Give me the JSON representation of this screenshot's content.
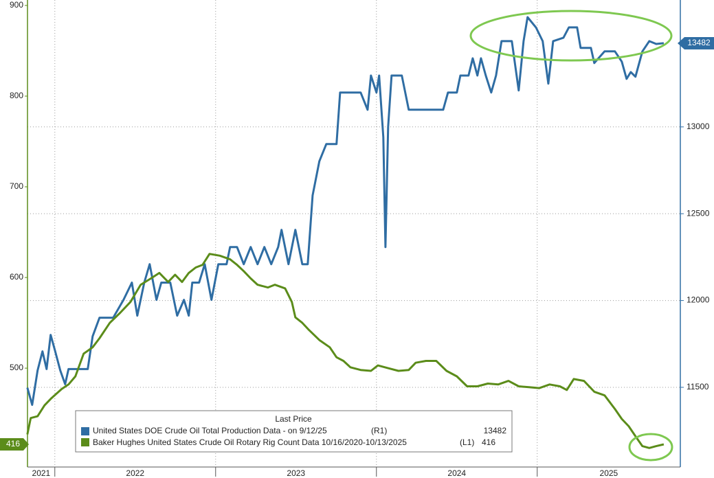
{
  "chart_data": {
    "type": "line",
    "legend_title": "Last Price",
    "xlim": [
      2021.83,
      2025.89
    ],
    "xticks": [
      {
        "value": 2021,
        "label": "2021"
      },
      {
        "value": 2022,
        "label": "2022"
      },
      {
        "value": 2023,
        "label": "2023"
      },
      {
        "value": 2024,
        "label": "2024"
      },
      {
        "value": 2025,
        "label": "2025"
      }
    ],
    "ylim": [
      391,
      906
    ],
    "yticks": [
      500,
      600,
      700,
      800,
      900
    ],
    "y2lim": [
      11041,
      13731
    ],
    "y2ticks": [
      11500,
      12000,
      12500,
      13000
    ],
    "grid": true,
    "series": [
      {
        "name": "United States DOE Crude Oil Total Production Data -  on 9/12/25",
        "axis_label": "(R1)",
        "axis": "y2",
        "color": "#2f6da3",
        "x": [
          2021.829,
          2021.859,
          2021.893,
          2021.923,
          2021.949,
          2021.974,
          2022.0,
          2022.034,
          2022.064,
          2022.085,
          2022.15,
          2022.205,
          2022.235,
          2022.278,
          2022.32,
          2022.363,
          2022.427,
          2022.479,
          2022.513,
          2022.556,
          2022.59,
          2022.632,
          2022.662,
          2022.718,
          2022.761,
          2022.803,
          2022.833,
          2022.855,
          2022.897,
          2022.932,
          2022.974,
          2023.017,
          2023.068,
          2023.09,
          2023.133,
          2023.175,
          2023.218,
          2023.261,
          2023.303,
          2023.346,
          2023.389,
          2023.41,
          2023.453,
          2023.496,
          2023.539,
          2023.573,
          2023.603,
          2023.645,
          2023.688,
          2023.752,
          2023.774,
          2023.838,
          2023.902,
          2023.945,
          2023.966,
          2024.0,
          2024.017,
          2024.043,
          2024.056,
          2024.073,
          2024.094,
          2024.158,
          2024.201,
          2024.308,
          2024.415,
          2024.445,
          2024.5,
          2024.522,
          2024.573,
          2024.599,
          2024.628,
          2024.65,
          2024.68,
          2024.714,
          2024.744,
          2024.778,
          2024.842,
          2024.885,
          2024.915,
          2024.94,
          2024.992,
          2025.034,
          2025.069,
          2025.099,
          2025.163,
          2025.197,
          2025.248,
          2025.27,
          2025.334,
          2025.355,
          2025.419,
          2025.483,
          2025.526,
          2025.556,
          2025.582,
          2025.611,
          2025.654,
          2025.697,
          2025.74,
          2025.787
        ],
        "values": [
          11498,
          11399,
          11597,
          11707,
          11605,
          11802,
          11715,
          11597,
          11518,
          11605,
          11605,
          11605,
          11794,
          11901,
          11901,
          11901,
          12004,
          12103,
          11913,
          12103,
          12209,
          12004,
          12103,
          12103,
          11913,
          12004,
          11913,
          12103,
          12103,
          12209,
          12004,
          12209,
          12209,
          12308,
          12308,
          12209,
          12308,
          12209,
          12308,
          12209,
          12308,
          12407,
          12209,
          12407,
          12209,
          12209,
          12605,
          12802,
          12901,
          12901,
          13198,
          13198,
          13198,
          13099,
          13296,
          13198,
          13296,
          12941,
          12308,
          13000,
          13296,
          13296,
          13099,
          13099,
          13099,
          13198,
          13198,
          13296,
          13296,
          13395,
          13296,
          13395,
          13296,
          13198,
          13296,
          13494,
          13494,
          13210,
          13494,
          13632,
          13573,
          13494,
          13249,
          13494,
          13514,
          13573,
          13573,
          13455,
          13455,
          13368,
          13435,
          13435,
          13376,
          13277,
          13316,
          13289,
          13435,
          13494,
          13478,
          13482
        ]
      },
      {
        "name": "Baker Hughes United States Crude Oil Rotary Rig Count Data 10/16/2020-10/13/2025",
        "axis_label": "(L1)",
        "axis": "y",
        "color": "#5b8c1a",
        "x": [
          2021.829,
          2021.85,
          2021.893,
          2021.936,
          2021.979,
          2022.043,
          2022.085,
          2022.128,
          2022.179,
          2022.235,
          2022.278,
          2022.342,
          2022.406,
          2022.47,
          2022.534,
          2022.598,
          2022.65,
          2022.705,
          2022.748,
          2022.791,
          2022.833,
          2022.876,
          2022.919,
          2022.962,
          2023.026,
          2023.09,
          2023.133,
          2023.175,
          2023.218,
          2023.261,
          2023.325,
          2023.368,
          2023.432,
          2023.474,
          2023.496,
          2023.539,
          2023.581,
          2023.645,
          2023.71,
          2023.752,
          2023.795,
          2023.838,
          2023.902,
          2023.966,
          2024.009,
          2024.073,
          2024.137,
          2024.201,
          2024.244,
          2024.308,
          2024.372,
          2024.436,
          2024.5,
          2024.564,
          2024.628,
          2024.693,
          2024.757,
          2024.821,
          2024.885,
          2024.949,
          2025.013,
          2025.077,
          2025.141,
          2025.184,
          2025.227,
          2025.291,
          2025.355,
          2025.419,
          2025.483,
          2025.526,
          2025.569,
          2025.611,
          2025.654,
          2025.697,
          2025.74,
          2025.787
        ],
        "values": [
          427,
          445,
          447,
          459,
          467,
          477,
          482,
          491,
          516,
          523,
          533,
          550,
          561,
          573,
          592,
          599,
          605,
          595,
          603,
          595,
          605,
          611,
          614,
          626,
          624,
          620,
          614,
          607,
          599,
          592,
          589,
          592,
          588,
          573,
          556,
          550,
          542,
          531,
          523,
          512,
          508,
          501,
          498,
          497,
          503,
          500,
          497,
          498,
          506,
          508,
          508,
          497,
          491,
          480,
          480,
          483,
          482,
          486,
          480,
          479,
          478,
          482,
          480,
          476,
          488,
          486,
          474,
          470,
          455,
          444,
          436,
          425,
          414,
          412,
          414,
          416
        ]
      }
    ]
  }
}
